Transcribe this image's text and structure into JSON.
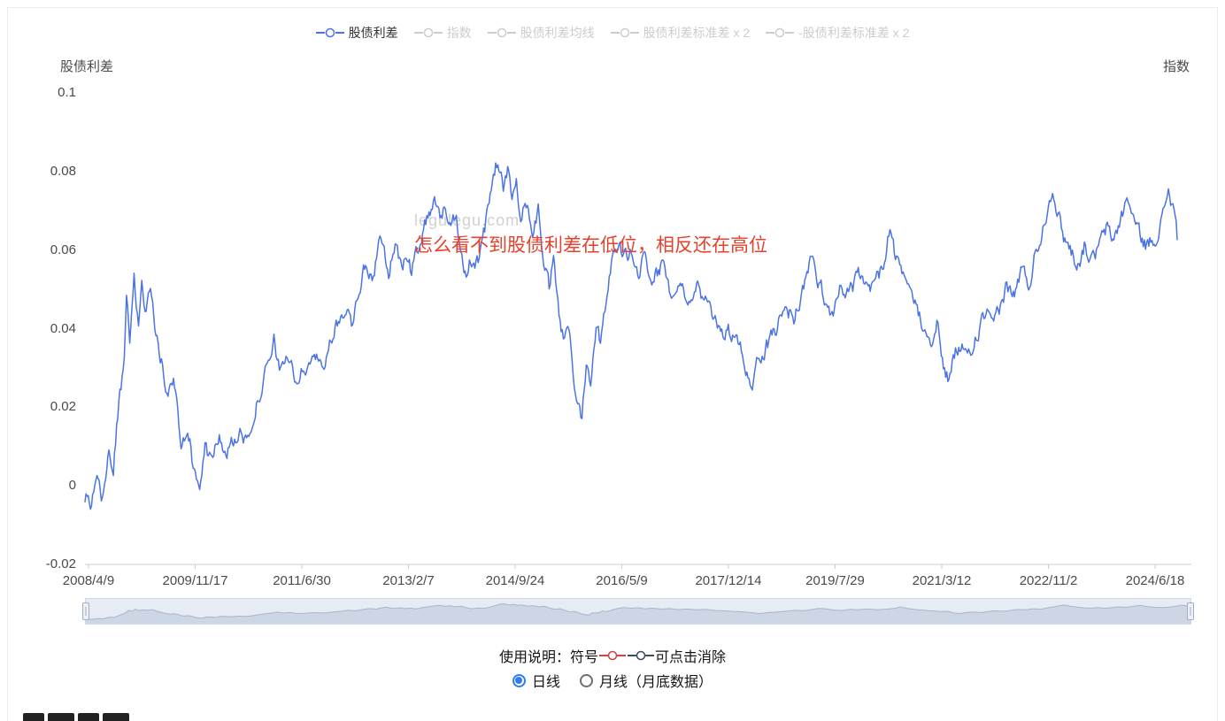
{
  "legend": {
    "items": [
      {
        "label": "股债利差",
        "active": true
      },
      {
        "label": "指数",
        "active": false
      },
      {
        "label": "股债利差均线",
        "active": false
      },
      {
        "label": "股债利差标准差 x 2",
        "active": false
      },
      {
        "label": "-股债利差标准差 x 2",
        "active": false
      }
    ]
  },
  "axis": {
    "left_title": "股债利差",
    "right_title": "指数",
    "y_labels": [
      "0.1",
      "0.08",
      "0.06",
      "0.04",
      "0.02",
      "0",
      "-0.02"
    ],
    "x_labels": [
      "2008/4/9",
      "2009/11/17",
      "2011/6/30",
      "2013/2/7",
      "2014/9/24",
      "2016/5/9",
      "2017/12/14",
      "2019/7/29",
      "2021/3/12",
      "2022/11/2",
      "2024/6/18"
    ]
  },
  "annotation": {
    "text": "怎么看不到股债利差在低位，相反还在高位",
    "color": "#e8402b"
  },
  "watermark": {
    "text": "legulegu.com"
  },
  "controls": {
    "usage_prefix": "使用说明：符号",
    "usage_suffix": "可点击消除",
    "marker_colors": [
      "#cf4444",
      "#3d4a63"
    ],
    "radios": [
      {
        "label": "日线",
        "selected": true
      },
      {
        "label": "月线（月底数据）",
        "selected": false
      }
    ]
  },
  "colors": {
    "series_blue": "#4c73e4",
    "inactive": "#cccccc",
    "axis_text": "#4a4a4a",
    "axis_line": "#cccccc",
    "slider_bg": "#e7ebf3",
    "slider_area": "#ccd6e4",
    "slider_line": "#a8b6cc",
    "radio_blue": "#2e7cf0"
  },
  "chart_data": {
    "type": "line",
    "title": "",
    "xlabel": "",
    "ylabel": "股债利差",
    "ylim": [
      -0.02,
      0.1
    ],
    "x_start": "2008/4/9",
    "x_end": "2024/6/18",
    "grid": false,
    "legend_position": "top",
    "hidden_series": [
      "指数",
      "股债利差均线",
      "股债利差标准差 x 2",
      "-股债利差标准差 x 2"
    ],
    "series": [
      {
        "name": "股债利差",
        "color": "#4c73e4",
        "points": [
          [
            0.002,
            -0.004
          ],
          [
            0.006,
            -0.006
          ],
          [
            0.011,
            0.0
          ],
          [
            0.016,
            -0.003
          ],
          [
            0.021,
            0.008
          ],
          [
            0.026,
            0.005
          ],
          [
            0.031,
            0.02
          ],
          [
            0.036,
            0.03
          ],
          [
            0.038,
            0.046
          ],
          [
            0.041,
            0.038
          ],
          [
            0.045,
            0.052
          ],
          [
            0.049,
            0.042
          ],
          [
            0.052,
            0.05
          ],
          [
            0.056,
            0.044
          ],
          [
            0.06,
            0.052
          ],
          [
            0.064,
            0.04
          ],
          [
            0.07,
            0.032
          ],
          [
            0.076,
            0.022
          ],
          [
            0.081,
            0.027
          ],
          [
            0.088,
            0.012
          ],
          [
            0.094,
            0.016
          ],
          [
            0.1,
            0.004
          ],
          [
            0.105,
            0.001
          ],
          [
            0.11,
            0.009
          ],
          [
            0.117,
            0.005
          ],
          [
            0.123,
            0.013
          ],
          [
            0.13,
            0.009
          ],
          [
            0.138,
            0.013
          ],
          [
            0.146,
            0.011
          ],
          [
            0.154,
            0.018
          ],
          [
            0.162,
            0.026
          ],
          [
            0.169,
            0.03
          ],
          [
            0.173,
            0.036
          ],
          [
            0.178,
            0.03
          ],
          [
            0.185,
            0.034
          ],
          [
            0.191,
            0.027
          ],
          [
            0.199,
            0.029
          ],
          [
            0.207,
            0.033
          ],
          [
            0.216,
            0.03
          ],
          [
            0.224,
            0.036
          ],
          [
            0.232,
            0.041
          ],
          [
            0.238,
            0.046
          ],
          [
            0.244,
            0.042
          ],
          [
            0.251,
            0.051
          ],
          [
            0.258,
            0.056
          ],
          [
            0.263,
            0.052
          ],
          [
            0.268,
            0.061
          ],
          [
            0.273,
            0.063
          ],
          [
            0.278,
            0.055
          ],
          [
            0.284,
            0.061
          ],
          [
            0.289,
            0.055
          ],
          [
            0.294,
            0.059
          ],
          [
            0.299,
            0.053
          ],
          [
            0.305,
            0.061
          ],
          [
            0.31,
            0.066
          ],
          [
            0.316,
            0.071
          ],
          [
            0.32,
            0.074
          ],
          [
            0.325,
            0.067
          ],
          [
            0.33,
            0.072
          ],
          [
            0.335,
            0.064
          ],
          [
            0.34,
            0.07
          ],
          [
            0.344,
            0.061
          ],
          [
            0.349,
            0.054
          ],
          [
            0.355,
            0.059
          ],
          [
            0.361,
            0.056
          ],
          [
            0.365,
            0.063
          ],
          [
            0.37,
            0.071
          ],
          [
            0.374,
            0.079
          ],
          [
            0.378,
            0.083
          ],
          [
            0.383,
            0.075
          ],
          [
            0.387,
            0.08
          ],
          [
            0.391,
            0.073
          ],
          [
            0.395,
            0.077
          ],
          [
            0.4,
            0.068
          ],
          [
            0.405,
            0.073
          ],
          [
            0.41,
            0.064
          ],
          [
            0.415,
            0.07
          ],
          [
            0.42,
            0.058
          ],
          [
            0.425,
            0.05
          ],
          [
            0.429,
            0.056
          ],
          [
            0.434,
            0.044
          ],
          [
            0.439,
            0.036
          ],
          [
            0.443,
            0.04
          ],
          [
            0.447,
            0.028
          ],
          [
            0.451,
            0.022
          ],
          [
            0.455,
            0.018
          ],
          [
            0.459,
            0.033
          ],
          [
            0.463,
            0.028
          ],
          [
            0.468,
            0.042
          ],
          [
            0.472,
            0.037
          ],
          [
            0.478,
            0.051
          ],
          [
            0.483,
            0.058
          ],
          [
            0.488,
            0.062
          ],
          [
            0.493,
            0.057
          ],
          [
            0.5,
            0.06
          ],
          [
            0.506,
            0.054
          ],
          [
            0.514,
            0.058
          ],
          [
            0.521,
            0.052
          ],
          [
            0.528,
            0.056
          ],
          [
            0.536,
            0.05
          ],
          [
            0.545,
            0.053
          ],
          [
            0.553,
            0.048
          ],
          [
            0.561,
            0.051
          ],
          [
            0.569,
            0.045
          ],
          [
            0.577,
            0.043
          ],
          [
            0.585,
            0.04
          ],
          [
            0.593,
            0.038
          ],
          [
            0.6,
            0.034
          ],
          [
            0.606,
            0.03
          ],
          [
            0.611,
            0.027
          ],
          [
            0.617,
            0.033
          ],
          [
            0.626,
            0.036
          ],
          [
            0.634,
            0.041
          ],
          [
            0.642,
            0.046
          ],
          [
            0.65,
            0.043
          ],
          [
            0.658,
            0.051
          ],
          [
            0.664,
            0.057
          ],
          [
            0.671,
            0.053
          ],
          [
            0.677,
            0.047
          ],
          [
            0.684,
            0.044
          ],
          [
            0.692,
            0.051
          ],
          [
            0.7,
            0.049
          ],
          [
            0.708,
            0.053
          ],
          [
            0.716,
            0.049
          ],
          [
            0.724,
            0.052
          ],
          [
            0.733,
            0.057
          ],
          [
            0.737,
            0.065
          ],
          [
            0.744,
            0.056
          ],
          [
            0.75,
            0.051
          ],
          [
            0.759,
            0.046
          ],
          [
            0.767,
            0.042
          ],
          [
            0.775,
            0.038
          ],
          [
            0.78,
            0.041
          ],
          [
            0.786,
            0.031
          ],
          [
            0.791,
            0.027
          ],
          [
            0.797,
            0.033
          ],
          [
            0.804,
            0.036
          ],
          [
            0.81,
            0.032
          ],
          [
            0.817,
            0.039
          ],
          [
            0.825,
            0.043
          ],
          [
            0.831,
            0.04
          ],
          [
            0.838,
            0.046
          ],
          [
            0.844,
            0.051
          ],
          [
            0.851,
            0.048
          ],
          [
            0.857,
            0.055
          ],
          [
            0.864,
            0.051
          ],
          [
            0.87,
            0.059
          ],
          [
            0.877,
            0.066
          ],
          [
            0.882,
            0.072
          ],
          [
            0.886,
            0.077
          ],
          [
            0.891,
            0.069
          ],
          [
            0.896,
            0.064
          ],
          [
            0.903,
            0.06
          ],
          [
            0.909,
            0.057
          ],
          [
            0.916,
            0.062
          ],
          [
            0.922,
            0.057
          ],
          [
            0.929,
            0.061
          ],
          [
            0.935,
            0.065
          ],
          [
            0.941,
            0.062
          ],
          [
            0.948,
            0.068
          ],
          [
            0.955,
            0.073
          ],
          [
            0.961,
            0.067
          ],
          [
            0.967,
            0.063
          ],
          [
            0.974,
            0.061
          ],
          [
            0.981,
            0.064
          ],
          [
            0.987,
            0.068
          ],
          [
            0.992,
            0.076
          ],
          [
            0.997,
            0.07
          ],
          [
            1.0,
            0.063
          ]
        ]
      }
    ]
  }
}
